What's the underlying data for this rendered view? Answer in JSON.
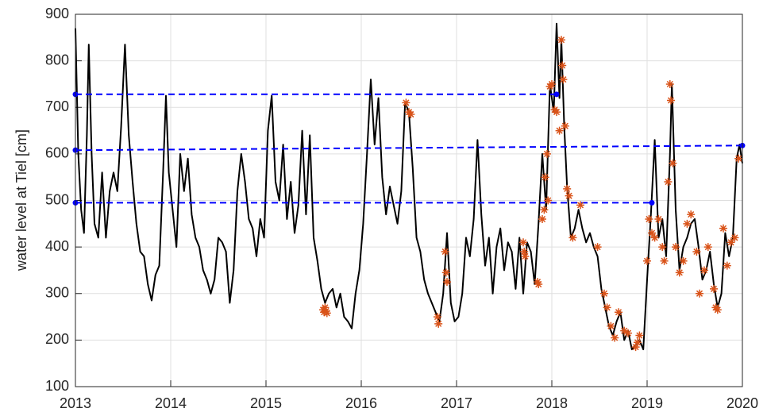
{
  "chart_data": {
    "type": "line",
    "ylabel": "water level at Tiel [cm]",
    "xlim": [
      2013,
      2020
    ],
    "xticks": [
      2013,
      2014,
      2015,
      2016,
      2017,
      2018,
      2019,
      2020
    ],
    "ylim": [
      100,
      900
    ],
    "yticks": [
      100,
      200,
      300,
      400,
      500,
      600,
      700,
      800,
      900
    ],
    "grid": true,
    "series": [
      {
        "color": "#000000",
        "style": "solid",
        "marker": "none",
        "x": [
          2013.0,
          2013.03,
          2013.06,
          2013.09,
          2013.12,
          2013.14,
          2013.17,
          2013.2,
          2013.24,
          2013.28,
          2013.32,
          2013.36,
          2013.4,
          2013.44,
          2013.48,
          2013.52,
          2013.56,
          2013.6,
          2013.64,
          2013.68,
          2013.72,
          2013.76,
          2013.8,
          2013.84,
          2013.88,
          2013.92,
          2013.95,
          2013.98,
          2014.02,
          2014.06,
          2014.1,
          2014.14,
          2014.18,
          2014.22,
          2014.26,
          2014.3,
          2014.34,
          2014.38,
          2014.42,
          2014.46,
          2014.5,
          2014.54,
          2014.58,
          2014.62,
          2014.66,
          2014.7,
          2014.74,
          2014.78,
          2014.82,
          2014.86,
          2014.9,
          2014.94,
          2014.98,
          2015.02,
          2015.06,
          2015.1,
          2015.14,
          2015.18,
          2015.22,
          2015.26,
          2015.3,
          2015.34,
          2015.38,
          2015.42,
          2015.46,
          2015.5,
          2015.54,
          2015.58,
          2015.62,
          2015.66,
          2015.7,
          2015.74,
          2015.78,
          2015.82,
          2015.86,
          2015.9,
          2015.94,
          2015.98,
          2016.02,
          2016.06,
          2016.1,
          2016.14,
          2016.18,
          2016.22,
          2016.26,
          2016.3,
          2016.34,
          2016.38,
          2016.42,
          2016.46,
          2016.5,
          2016.54,
          2016.58,
          2016.62,
          2016.66,
          2016.7,
          2016.74,
          2016.78,
          2016.82,
          2016.86,
          2016.9,
          2016.94,
          2016.98,
          2017.02,
          2017.06,
          2017.1,
          2017.14,
          2017.18,
          2017.22,
          2017.26,
          2017.3,
          2017.34,
          2017.38,
          2017.42,
          2017.46,
          2017.5,
          2017.54,
          2017.58,
          2017.62,
          2017.66,
          2017.7,
          2017.74,
          2017.78,
          2017.82,
          2017.86,
          2017.9,
          2017.94,
          2017.98,
          2018.02,
          2018.05,
          2018.08,
          2018.1,
          2018.13,
          2018.16,
          2018.2,
          2018.24,
          2018.28,
          2018.32,
          2018.36,
          2018.4,
          2018.44,
          2018.48,
          2018.52,
          2018.56,
          2018.6,
          2018.64,
          2018.68,
          2018.72,
          2018.76,
          2018.8,
          2018.84,
          2018.88,
          2018.92,
          2018.96,
          2019.0,
          2019.04,
          2019.08,
          2019.12,
          2019.16,
          2019.2,
          2019.24,
          2019.26,
          2019.3,
          2019.34,
          2019.38,
          2019.42,
          2019.46,
          2019.5,
          2019.54,
          2019.58,
          2019.62,
          2019.66,
          2019.7,
          2019.74,
          2019.78,
          2019.82,
          2019.86,
          2019.9,
          2019.94,
          2019.97,
          2020.0
        ],
        "values": [
          870,
          600,
          480,
          430,
          640,
          835,
          600,
          450,
          420,
          560,
          420,
          520,
          560,
          520,
          660,
          835,
          640,
          540,
          450,
          390,
          380,
          320,
          285,
          340,
          360,
          560,
          725,
          560,
          480,
          400,
          600,
          520,
          590,
          470,
          420,
          400,
          350,
          330,
          300,
          330,
          420,
          410,
          390,
          280,
          350,
          520,
          600,
          540,
          460,
          440,
          380,
          460,
          420,
          650,
          725,
          540,
          500,
          620,
          460,
          540,
          430,
          490,
          650,
          470,
          640,
          420,
          370,
          310,
          280,
          300,
          310,
          270,
          300,
          250,
          240,
          225,
          300,
          350,
          450,
          600,
          760,
          620,
          720,
          550,
          470,
          530,
          490,
          450,
          520,
          710,
          690,
          570,
          420,
          390,
          330,
          300,
          280,
          260,
          240,
          300,
          430,
          280,
          240,
          250,
          300,
          420,
          380,
          460,
          630,
          470,
          360,
          420,
          300,
          400,
          440,
          350,
          410,
          390,
          310,
          420,
          300,
          410,
          390,
          320,
          450,
          600,
          480,
          750,
          690,
          880,
          720,
          845,
          660,
          530,
          420,
          440,
          480,
          440,
          410,
          430,
          400,
          380,
          310,
          270,
          230,
          210,
          240,
          260,
          200,
          220,
          180,
          190,
          200,
          180,
          330,
          470,
          630,
          420,
          460,
          380,
          600,
          750,
          480,
          350,
          400,
          420,
          450,
          460,
          400,
          330,
          350,
          390,
          320,
          270,
          300,
          430,
          380,
          420,
          590,
          620,
          580
        ]
      },
      {
        "color": "#0000ff",
        "style": "dashed",
        "marker": "dot",
        "x": [
          2013,
          2018.05
        ],
        "values": [
          728,
          728
        ]
      },
      {
        "color": "#0000ff",
        "style": "dashed",
        "marker": "dot",
        "x": [
          2013,
          2020
        ],
        "values": [
          608,
          618
        ]
      },
      {
        "color": "#0000ff",
        "style": "dashed",
        "marker": "dot",
        "x": [
          2013,
          2019.05
        ],
        "values": [
          495,
          495
        ]
      },
      {
        "color": "#d95319",
        "style": "none",
        "marker": "star",
        "x": [
          2015.6,
          2015.61,
          2015.62,
          2015.63,
          2015.64,
          2016.47,
          2016.5,
          2016.52,
          2016.8,
          2016.81,
          2016.88,
          2016.89,
          2016.9,
          2017.7,
          2017.71,
          2017.72,
          2017.85,
          2017.86,
          2017.9,
          2017.92,
          2017.93,
          2017.95,
          2017.96,
          2017.98,
          2018.0,
          2018.03,
          2018.05,
          2018.08,
          2018.1,
          2018.11,
          2018.12,
          2018.14,
          2018.16,
          2018.18,
          2018.22,
          2018.3,
          2018.48,
          2018.55,
          2018.58,
          2018.62,
          2018.66,
          2018.7,
          2018.76,
          2018.8,
          2018.88,
          2018.9,
          2018.92,
          2019.0,
          2019.02,
          2019.05,
          2019.08,
          2019.12,
          2019.16,
          2019.18,
          2019.22,
          2019.24,
          2019.25,
          2019.27,
          2019.3,
          2019.34,
          2019.38,
          2019.42,
          2019.46,
          2019.52,
          2019.55,
          2019.6,
          2019.64,
          2019.7,
          2019.72,
          2019.74,
          2019.8,
          2019.84,
          2019.88,
          2019.92,
          2019.96
        ],
        "values": [
          265,
          260,
          270,
          262,
          258,
          710,
          690,
          685,
          250,
          235,
          390,
          345,
          325,
          410,
          390,
          380,
          325,
          320,
          460,
          480,
          550,
          600,
          500,
          745,
          750,
          695,
          690,
          650,
          845,
          790,
          760,
          660,
          525,
          510,
          420,
          490,
          400,
          300,
          270,
          230,
          205,
          260,
          220,
          215,
          185,
          195,
          210,
          370,
          460,
          430,
          420,
          460,
          400,
          370,
          540,
          750,
          715,
          580,
          400,
          345,
          370,
          450,
          470,
          390,
          300,
          350,
          400,
          310,
          270,
          265,
          440,
          360,
          410,
          420,
          590
        ]
      }
    ]
  }
}
